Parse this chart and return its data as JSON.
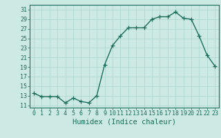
{
  "x": [
    0,
    1,
    2,
    3,
    4,
    5,
    6,
    7,
    8,
    9,
    10,
    11,
    12,
    13,
    14,
    15,
    16,
    17,
    18,
    19,
    20,
    21,
    22,
    23
  ],
  "y": [
    13.5,
    12.8,
    12.8,
    12.8,
    11.5,
    12.5,
    11.8,
    11.5,
    13.0,
    19.5,
    23.5,
    25.5,
    27.2,
    27.2,
    27.2,
    29.0,
    29.5,
    29.5,
    30.5,
    29.2,
    29.0,
    25.5,
    21.5,
    19.2
  ],
  "line_color": "#1a6b5a",
  "marker": "+",
  "xlabel": "Humidex (Indice chaleur)",
  "bg_color": "#cce9e4",
  "grid_color": "#aad4ce",
  "yticks": [
    11,
    13,
    15,
    17,
    19,
    21,
    23,
    25,
    27,
    29,
    31
  ],
  "xticks": [
    0,
    1,
    2,
    3,
    4,
    5,
    6,
    7,
    8,
    9,
    10,
    11,
    12,
    13,
    14,
    15,
    16,
    17,
    18,
    19,
    20,
    21,
    22,
    23
  ],
  "ylim": [
    10.5,
    32.0
  ],
  "xlim": [
    -0.5,
    23.5
  ],
  "axis_color": "#1a6b5a",
  "font_color": "#1a6b5a",
  "linewidth": 1.0,
  "markersize": 4,
  "tick_fontsize": 6.0,
  "xlabel_fontsize": 7.5
}
